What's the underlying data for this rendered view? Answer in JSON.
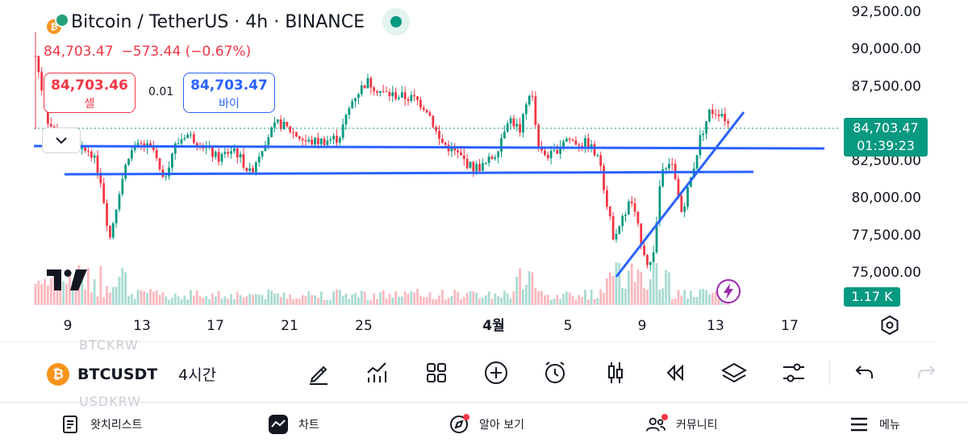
{
  "header": {
    "title": "Bitcoin / TetherUS · 4h · BINANCE",
    "status_color": "#089981"
  },
  "ohlc": {
    "price": "84,703.47",
    "change": "−573.44 (−0.67%)"
  },
  "trade": {
    "sell_price": "84,703.46",
    "sell_label": "셀",
    "spread": "0.01",
    "buy_price": "84,703.47",
    "buy_label": "바이"
  },
  "price_axis": {
    "ticks": [
      "92,500.00",
      "90,000.00",
      "87,500.00",
      "82,500.00",
      "80,000.00",
      "77,500.00",
      "75,000.00"
    ]
  },
  "current_price": {
    "price": "84,703.47",
    "countdown": "01:39:23"
  },
  "volume_tag": "1.17 K",
  "time_axis": {
    "ticks": [
      "9",
      "13",
      "17",
      "21",
      "25",
      "4월",
      "5",
      "9",
      "13",
      "17"
    ]
  },
  "chart_data": {
    "type": "candlestick",
    "symbol": "BTCUSDT",
    "interval": "4h",
    "ylim": [
      74000,
      93000
    ],
    "last_price": 84703.47,
    "horizontal_lines": [
      {
        "price": 83600,
        "color": "#2962ff"
      },
      {
        "price": 81850,
        "color": "#2962ff"
      }
    ],
    "trend_line": {
      "from_price": 74900,
      "to_price": 86100,
      "color": "#2962ff"
    },
    "up_color": "#089981",
    "down_color": "#f23645"
  },
  "toolbar": {
    "symbol": "BTCUSDT",
    "coin_glyph": "₿",
    "interval": "4시간",
    "ghost_above": "BTCKRW",
    "ghost_below": "USDKRW",
    "icons": [
      "drawing-pen-icon",
      "indicators-icon",
      "layout-grid-icon",
      "add-icon",
      "alarm-icon",
      "candle-type-icon",
      "replay-icon",
      "layers-icon",
      "settings-sliders-icon",
      "undo-icon",
      "redo-icon"
    ]
  },
  "bottom_nav": {
    "items": [
      {
        "label": "왓치리스트",
        "icon": "watchlist-icon"
      },
      {
        "label": "차트",
        "icon": "chart-icon"
      },
      {
        "label": "알아 보기",
        "icon": "explore-icon"
      },
      {
        "label": "커뮤니티",
        "icon": "community-icon"
      },
      {
        "label": "메뉴",
        "icon": "menu-icon"
      }
    ]
  }
}
